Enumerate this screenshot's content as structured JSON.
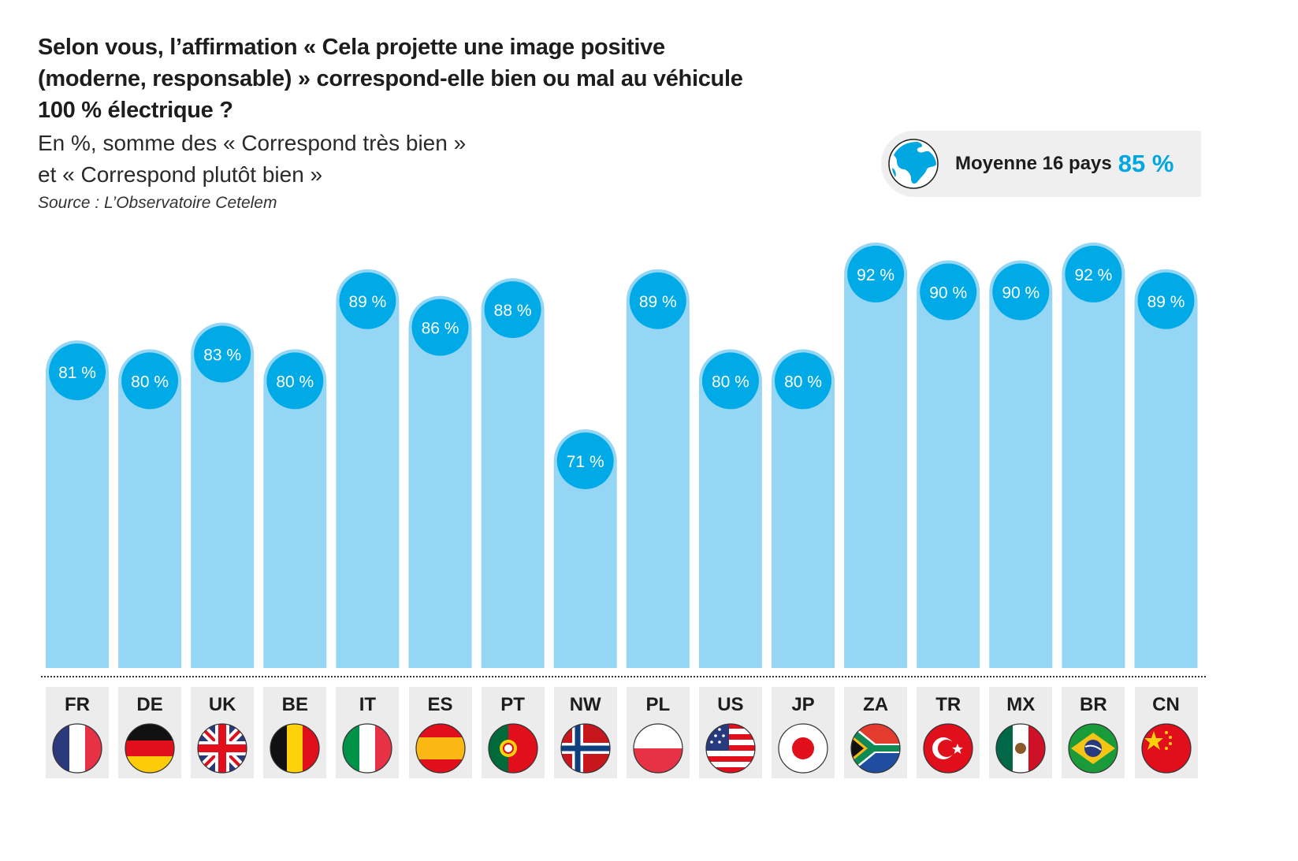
{
  "header": {
    "title": "Selon vous, l’affirmation « Cela projette une image positive (moderne, responsable) » correspond-elle bien ou mal au véhicule 100 % électrique ?",
    "subtitle_line1": "En %, somme des « Correspond très bien »",
    "subtitle_line2": "et « Correspond plutôt bien »",
    "source": "Source : L’Observatoire Cetelem"
  },
  "average": {
    "icon": "globe-icon",
    "label": "Moyenne 16 pays",
    "value": "85 %"
  },
  "colors": {
    "bar": "#96d6f5",
    "bubble": "#00aae6",
    "accent": "#00a7e1",
    "label_bg": "#ececec"
  },
  "chart_data": {
    "type": "bar",
    "title": "Selon vous, l’affirmation « Cela projette une image positive (moderne, responsable) » correspond-elle bien ou mal au véhicule 100 % électrique ?",
    "subtitle": "En %, somme des « Correspond très bien » et « Correspond plutôt bien »",
    "xlabel": "",
    "ylabel": "%",
    "categories": [
      "FR",
      "DE",
      "UK",
      "BE",
      "IT",
      "ES",
      "PT",
      "NW",
      "PL",
      "US",
      "JP",
      "ZA",
      "TR",
      "MX",
      "BR",
      "CN"
    ],
    "values": [
      81,
      80,
      83,
      80,
      89,
      86,
      88,
      71,
      89,
      80,
      80,
      92,
      90,
      90,
      92,
      89
    ],
    "labels": [
      "81 %",
      "80 %",
      "83 %",
      "80 %",
      "89 %",
      "86 %",
      "88 %",
      "71 %",
      "89 %",
      "80 %",
      "80 %",
      "92 %",
      "90 %",
      "90 %",
      "92 %",
      "89 %"
    ],
    "average": 85,
    "grid": false,
    "legend": "none"
  },
  "countries": [
    {
      "code": "FR",
      "flag": "france-flag-icon"
    },
    {
      "code": "DE",
      "flag": "germany-flag-icon"
    },
    {
      "code": "UK",
      "flag": "uk-flag-icon"
    },
    {
      "code": "BE",
      "flag": "belgium-flag-icon"
    },
    {
      "code": "IT",
      "flag": "italy-flag-icon"
    },
    {
      "code": "ES",
      "flag": "spain-flag-icon"
    },
    {
      "code": "PT",
      "flag": "portugal-flag-icon"
    },
    {
      "code": "NW",
      "flag": "norway-flag-icon"
    },
    {
      "code": "PL",
      "flag": "poland-flag-icon"
    },
    {
      "code": "US",
      "flag": "usa-flag-icon"
    },
    {
      "code": "JP",
      "flag": "japan-flag-icon"
    },
    {
      "code": "ZA",
      "flag": "south-africa-flag-icon"
    },
    {
      "code": "TR",
      "flag": "turkey-flag-icon"
    },
    {
      "code": "MX",
      "flag": "mexico-flag-icon"
    },
    {
      "code": "BR",
      "flag": "brazil-flag-icon"
    },
    {
      "code": "CN",
      "flag": "china-flag-icon"
    }
  ]
}
